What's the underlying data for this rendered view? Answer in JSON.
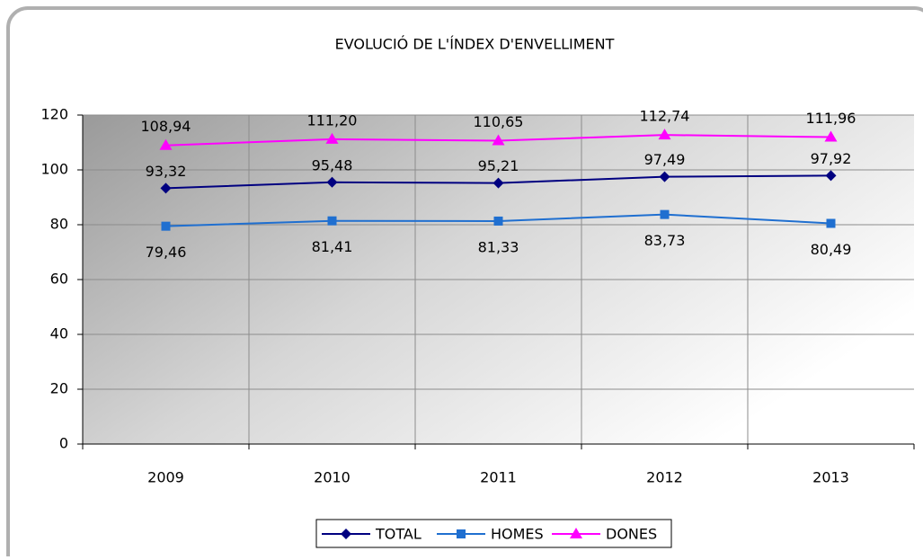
{
  "chart_data": {
    "type": "line",
    "title": "EVOLUCIÓ DE L'ÍNDEX D'ENVELLIMENT",
    "categories": [
      "2009",
      "2010",
      "2011",
      "2012",
      "2013"
    ],
    "series": [
      {
        "name": "TOTAL",
        "color": "#000080",
        "marker": "diamond",
        "values": [
          93.32,
          95.48,
          95.21,
          97.49,
          97.92
        ],
        "value_labels": [
          "93,32",
          "95,48",
          "95,21",
          "97,49",
          "97,92"
        ]
      },
      {
        "name": "HOMES",
        "color": "#1f6fd0",
        "marker": "square",
        "values": [
          79.46,
          81.41,
          81.33,
          83.73,
          80.49
        ],
        "value_labels": [
          "79,46",
          "81,41",
          "81,33",
          "83,73",
          "80,49"
        ]
      },
      {
        "name": "DONES",
        "color": "#ff00ff",
        "marker": "triangle",
        "values": [
          108.94,
          111.2,
          110.65,
          112.74,
          111.96
        ],
        "value_labels": [
          "108,94",
          "111,20",
          "110,65",
          "112,74",
          "111,96"
        ]
      }
    ],
    "ylim": [
      0,
      120
    ],
    "yticks": [
      0,
      20,
      40,
      60,
      80,
      100,
      120
    ],
    "grid": true,
    "legend": "bottom"
  }
}
